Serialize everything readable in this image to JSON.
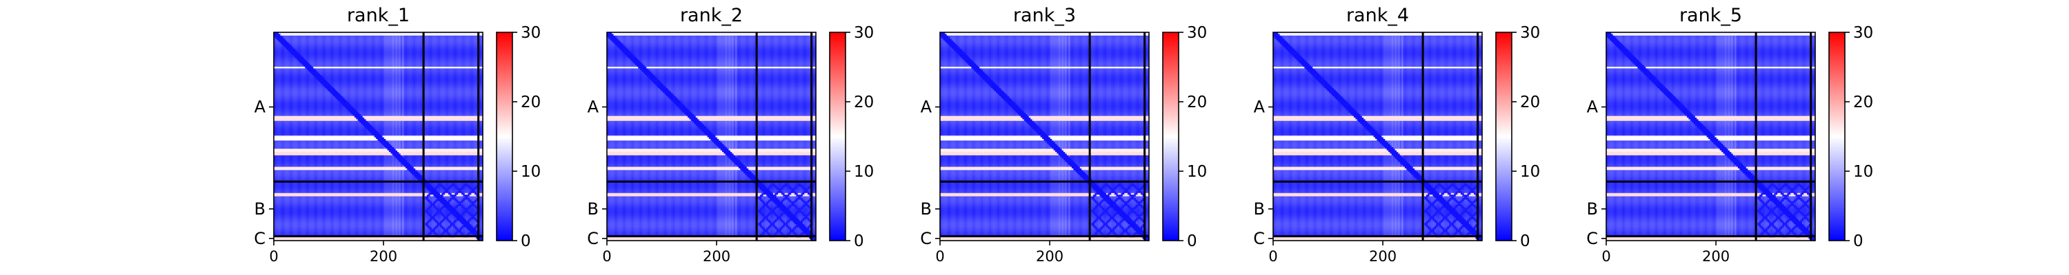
{
  "chart_data": {
    "type": "heatmap",
    "chain_labels": [
      "A",
      "B",
      "C"
    ],
    "chain_breaks": [
      273,
      373
    ],
    "length": 381,
    "x_ticks": [
      0,
      200
    ],
    "colormap": {
      "low": "#0000ff",
      "mid": "#ffffff",
      "high": "#ff0000"
    },
    "colorbar": {
      "range": [
        0,
        30
      ],
      "ticks": [
        "0",
        "10",
        "20",
        "30"
      ]
    },
    "grid": false,
    "panels": [
      {
        "title": "rank_1"
      },
      {
        "title": "rank_2"
      },
      {
        "title": "rank_3"
      },
      {
        "title": "rank_4"
      },
      {
        "title": "rank_5"
      }
    ]
  }
}
